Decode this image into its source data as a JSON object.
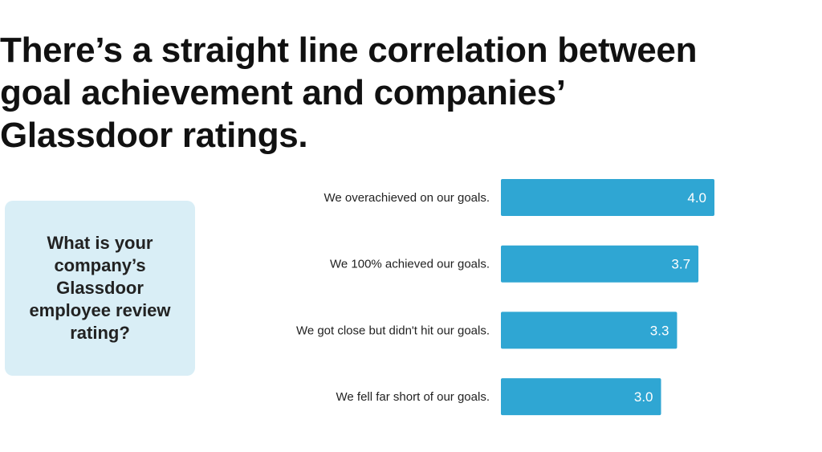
{
  "headline": "There’s a straight line correlation between\ngoal achievement and companies’\nGlassdoor ratings.",
  "question": "What is your company’s Glassdoor employee review rating?",
  "colors": {
    "bar": "#2fa6d3",
    "question_box": "#d9eef6"
  },
  "chart_data": {
    "type": "bar",
    "orientation": "horizontal",
    "categories": [
      "We overachieved on our goals.",
      "We 100% achieved our goals.",
      "We got close but didn't hit our goals.",
      "We fell far short of our goals."
    ],
    "values": [
      4.0,
      3.7,
      3.3,
      3.0
    ],
    "value_labels": [
      "4.0",
      "3.7",
      "3.3",
      "3.0"
    ],
    "title": "",
    "xlabel": "",
    "ylabel": "",
    "grid": false
  }
}
